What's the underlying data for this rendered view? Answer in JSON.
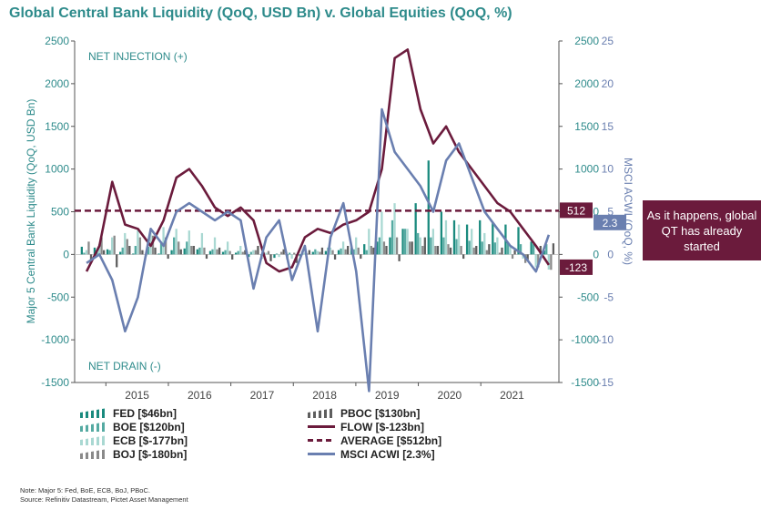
{
  "title": "Global Central Bank Liquidity (QoQ, USD Bn) v. Global Equities (QoQ, %)",
  "colors": {
    "fed": "#1a8a7e",
    "boe": "#55aaa2",
    "ecb": "#a9d8d2",
    "boj": "#8a8a8a",
    "pboc": "#5e5e5e",
    "flow": "#6b1b3c",
    "average": "#6b1b3c",
    "msci": "#6a7fb0",
    "title": "#2e8b8b"
  },
  "chart_data": {
    "type": "bar",
    "title": "Global Central Bank Liquidity (QoQ, USD Bn) v. Global Equities (QoQ, %)",
    "ylabel": "Major 5 Central Bank Liquidity (QoQ, USD Bn)",
    "y2label": "MSCI ACWI (QoQ, %)",
    "ylim": [
      -1500,
      2500
    ],
    "y2lim": [
      -15,
      25
    ],
    "xlim": [
      2014.5,
      2022.25
    ],
    "yticks": [
      "-1500",
      "-1000",
      "-500",
      "0",
      "500",
      "1000",
      "1500",
      "2000",
      "2500"
    ],
    "y2ticks": [
      "-15",
      "-10",
      "-5",
      "0",
      "5",
      "10",
      "15",
      "20",
      "25"
    ],
    "right_liquidity_ticks": [
      "-1500",
      "-1000",
      "-500",
      "0",
      "500",
      "1000",
      "1500",
      "2000",
      "2500"
    ],
    "xticks": [
      "2015",
      "2016",
      "2017",
      "2018",
      "2019",
      "2020",
      "2021"
    ],
    "annotations": {
      "net_injection": "NET INJECTION (+)",
      "net_drain": "NET DRAIN (-)"
    },
    "series": [
      {
        "name": "FED",
        "key": "fed",
        "values": [
          90,
          80,
          60,
          30,
          10,
          -20,
          10,
          50,
          70,
          60,
          40,
          30,
          20,
          -30,
          -50,
          -40,
          -60,
          -20,
          30,
          40,
          50,
          80,
          120,
          150,
          200,
          300,
          600,
          1100,
          500,
          400,
          350,
          400,
          380,
          350,
          320,
          150,
          46
        ]
      },
      {
        "name": "BOE",
        "key": "boe",
        "values": [
          20,
          30,
          50,
          80,
          100,
          90,
          150,
          200,
          150,
          80,
          60,
          50,
          40,
          30,
          20,
          10,
          20,
          40,
          60,
          80,
          70,
          60,
          50,
          200,
          400,
          300,
          250,
          200,
          200,
          180,
          160,
          150,
          140,
          130,
          120,
          120,
          120
        ]
      },
      {
        "name": "ECB",
        "key": "ecb",
        "values": [
          50,
          120,
          200,
          250,
          280,
          300,
          320,
          300,
          280,
          250,
          200,
          150,
          100,
          50,
          20,
          -30,
          -50,
          20,
          40,
          80,
          150,
          200,
          300,
          500,
          600,
          300,
          200,
          300,
          400,
          350,
          300,
          250,
          200,
          100,
          -50,
          -150,
          -177
        ]
      },
      {
        "name": "BOJ",
        "key": "boj",
        "values": [
          150,
          200,
          220,
          180,
          200,
          220,
          200,
          150,
          100,
          80,
          60,
          40,
          30,
          50,
          40,
          30,
          20,
          10,
          30,
          50,
          60,
          80,
          100,
          150,
          200,
          150,
          100,
          100,
          120,
          100,
          80,
          50,
          20,
          -50,
          -100,
          -150,
          -180
        ]
      },
      {
        "name": "PBOC",
        "key": "pboc",
        "values": [
          -100,
          50,
          -150,
          100,
          50,
          80,
          -50,
          60,
          100,
          -50,
          80,
          -60,
          50,
          100,
          -80,
          60,
          -100,
          50,
          80,
          -60,
          100,
          -50,
          80,
          100,
          -80,
          150,
          200,
          100,
          80,
          -50,
          100,
          120,
          80,
          50,
          -60,
          100,
          130
        ]
      },
      {
        "name": "FLOW",
        "key": "flow",
        "values": [
          -200,
          100,
          850,
          350,
          300,
          100,
          400,
          900,
          1000,
          800,
          550,
          450,
          550,
          400,
          -100,
          -200,
          -150,
          200,
          300,
          250,
          350,
          400,
          500,
          1000,
          2300,
          2400,
          1700,
          1300,
          1500,
          1200,
          1000,
          800,
          600,
          500,
          300,
          100,
          -123
        ]
      },
      {
        "name": "MSCI ACWI",
        "key": "msci",
        "values": [
          -1,
          0,
          -3,
          -9,
          -5,
          3,
          1,
          5,
          6,
          5,
          4,
          5,
          4,
          -4,
          2,
          4,
          -3,
          1,
          -9,
          2,
          6,
          -2,
          -16,
          17,
          12,
          10,
          8,
          5,
          11,
          13,
          9,
          5,
          3,
          1,
          0,
          -2,
          2.3
        ]
      },
      {
        "name": "AVERAGE",
        "key": "average",
        "values": [
          512
        ]
      }
    ],
    "value_labels": {
      "average": "512",
      "flow_last": "-123",
      "msci_last": "2.3"
    },
    "legend": [
      {
        "key": "fed",
        "style": "bars",
        "label": "FED [$46bn]"
      },
      {
        "key": "pboc",
        "style": "bars",
        "label": "PBOC [$130bn]"
      },
      {
        "key": "boe",
        "style": "bars",
        "label": "BOE [$120bn]"
      },
      {
        "key": "flow",
        "style": "line",
        "label": "FLOW [$-123bn]"
      },
      {
        "key": "ecb",
        "style": "bars",
        "label": "ECB [$-177bn]"
      },
      {
        "key": "average",
        "style": "dash",
        "label": "AVERAGE [$512bn]"
      },
      {
        "key": "boj",
        "style": "bars",
        "label": "BOJ [$-180bn]"
      },
      {
        "key": "msci",
        "style": "line",
        "label": "MSCI ACWI [2.3%]"
      }
    ]
  },
  "callout": "As it happens, global QT has already started",
  "notes": {
    "note": "Note: Major 5: Fed, BoE, ECB, BoJ, PBoC.",
    "source": "Source: Refinitiv Datastream, Pictet Asset Management"
  }
}
